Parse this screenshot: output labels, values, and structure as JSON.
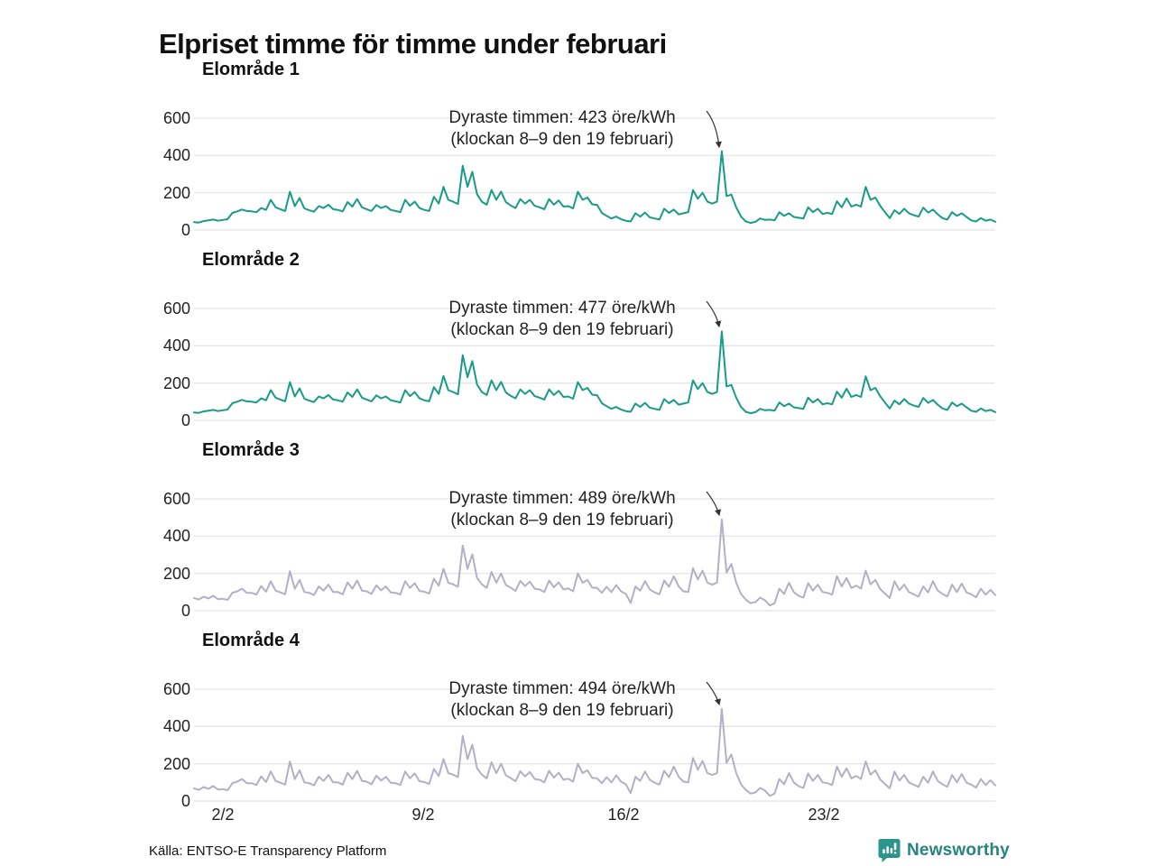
{
  "page": {
    "title": "Elpriset timme för timme under februari",
    "source": "Källa: ENTSO-E Transparency Platform",
    "logo_text": "Newsworthy"
  },
  "colors": {
    "teal": "#199c86",
    "lavender": "#b3b0c6",
    "grid": "#dedede",
    "arrow": "#333333",
    "logo_icon": "#2b958b",
    "logo_text": "#26847c"
  },
  "y_axis": {
    "ticks": [
      0,
      200,
      400,
      600
    ],
    "max": 600
  },
  "x_axis": {
    "ticks": [
      "2/2",
      "9/2",
      "16/2",
      "23/2"
    ],
    "days_in_month": 28
  },
  "chart_data": [
    {
      "type": "line",
      "title": "Elområde 1",
      "unit": "öre/kWh",
      "color": "#199c86",
      "ylim": [
        0,
        600
      ],
      "x_start": "1/2",
      "x_end": "28/2",
      "samples_per_day": 6,
      "annotation": {
        "line1": "Dyraste timmen: 423 öre/kWh",
        "line2": "(klockan 8–9 den 19 februari)",
        "value": 423,
        "peak_day": 19,
        "peak_hour": 8
      },
      "values": [
        42,
        40,
        48,
        52,
        56,
        50,
        54,
        58,
        92,
        100,
        110,
        102,
        100,
        96,
        118,
        108,
        162,
        122,
        112,
        102,
        205,
        128,
        172,
        116,
        106,
        98,
        128,
        118,
        136,
        112,
        108,
        100,
        150,
        126,
        166,
        122,
        112,
        102,
        134,
        118,
        128,
        108,
        102,
        96,
        162,
        130,
        152,
        118,
        108,
        102,
        178,
        142,
        232,
        162,
        152,
        140,
        345,
        232,
        312,
        192,
        152,
        136,
        215,
        162,
        206,
        150,
        132,
        118,
        166,
        142,
        162,
        130,
        122,
        112,
        166,
        136,
        158,
        126,
        128,
        116,
        205,
        162,
        174,
        138,
        135,
        92,
        76,
        62,
        72,
        58,
        50,
        46,
        90,
        72,
        94,
        68,
        62,
        56,
        114,
        92,
        110,
        84,
        90,
        96,
        215,
        168,
        200,
        152,
        142,
        152,
        423,
        182,
        190,
        122,
        72,
        46,
        38,
        44,
        62,
        54,
        56,
        52,
        96,
        76,
        90,
        70,
        66,
        62,
        122,
        96,
        114,
        86,
        92,
        86,
        154,
        122,
        170,
        126,
        136,
        126,
        232,
        162,
        174,
        130,
        96,
        64,
        106,
        86,
        114,
        90,
        80,
        72,
        120,
        94,
        110,
        84,
        64,
        56,
        96,
        76,
        90,
        70,
        52,
        46,
        64,
        50,
        56,
        44
      ]
    },
    {
      "type": "line",
      "title": "Elområde 2",
      "unit": "öre/kWh",
      "color": "#199c86",
      "ylim": [
        0,
        600
      ],
      "x_start": "1/2",
      "x_end": "28/2",
      "samples_per_day": 6,
      "annotation": {
        "line1": "Dyraste timmen: 477 öre/kWh",
        "line2": "(klockan 8–9 den 19 februari)",
        "value": 477,
        "peak_day": 19,
        "peak_hour": 8
      },
      "values": [
        42,
        40,
        48,
        52,
        56,
        50,
        54,
        58,
        92,
        100,
        110,
        102,
        100,
        96,
        118,
        108,
        162,
        122,
        112,
        102,
        205,
        128,
        172,
        116,
        106,
        98,
        128,
        118,
        136,
        112,
        108,
        100,
        150,
        126,
        166,
        122,
        112,
        102,
        134,
        118,
        128,
        108,
        102,
        96,
        162,
        130,
        152,
        118,
        108,
        102,
        178,
        142,
        238,
        162,
        152,
        140,
        350,
        232,
        318,
        192,
        152,
        136,
        215,
        162,
        206,
        150,
        132,
        118,
        166,
        142,
        162,
        130,
        122,
        112,
        166,
        136,
        158,
        126,
        128,
        116,
        205,
        162,
        174,
        138,
        135,
        92,
        76,
        62,
        72,
        58,
        50,
        46,
        90,
        72,
        94,
        68,
        62,
        56,
        114,
        92,
        110,
        84,
        90,
        96,
        215,
        168,
        200,
        152,
        142,
        152,
        477,
        182,
        190,
        122,
        72,
        46,
        38,
        44,
        62,
        54,
        56,
        52,
        96,
        76,
        90,
        70,
        66,
        62,
        122,
        96,
        114,
        86,
        92,
        86,
        154,
        122,
        170,
        126,
        136,
        126,
        236,
        162,
        174,
        130,
        96,
        64,
        106,
        86,
        114,
        90,
        80,
        72,
        120,
        94,
        110,
        84,
        64,
        56,
        96,
        76,
        90,
        70,
        52,
        46,
        64,
        50,
        56,
        44
      ]
    },
    {
      "type": "line",
      "title": "Elområde 3",
      "unit": "öre/kWh",
      "color": "#b3b0c6",
      "ylim": [
        0,
        600
      ],
      "x_start": "1/2",
      "x_end": "28/2",
      "samples_per_day": 6,
      "annotation": {
        "line1": "Dyraste timmen: 489 öre/kWh",
        "line2": "(klockan 8–9 den 19 februari)",
        "value": 489,
        "peak_day": 19,
        "peak_hour": 8
      },
      "values": [
        68,
        60,
        75,
        66,
        80,
        62,
        64,
        58,
        96,
        104,
        118,
        96,
        96,
        86,
        132,
        102,
        158,
        108,
        98,
        88,
        212,
        118,
        165,
        100,
        96,
        84,
        130,
        108,
        140,
        100,
        100,
        88,
        152,
        118,
        162,
        108,
        104,
        90,
        136,
        110,
        130,
        98,
        96,
        86,
        158,
        122,
        148,
        106,
        102,
        92,
        172,
        134,
        225,
        150,
        142,
        128,
        350,
        225,
        302,
        176,
        142,
        122,
        208,
        150,
        200,
        138,
        124,
        106,
        160,
        132,
        156,
        118,
        114,
        100,
        162,
        126,
        152,
        114,
        120,
        104,
        200,
        150,
        165,
        124,
        122,
        96,
        128,
        100,
        138,
        104,
        90,
        42,
        130,
        108,
        158,
        114,
        98,
        88,
        162,
        128,
        185,
        130,
        104,
        100,
        228,
        168,
        215,
        150,
        140,
        150,
        489,
        205,
        250,
        150,
        90,
        60,
        40,
        46,
        70,
        56,
        28,
        40,
        118,
        90,
        150,
        100,
        80,
        70,
        148,
        108,
        140,
        100,
        96,
        86,
        185,
        130,
        175,
        122,
        135,
        118,
        215,
        142,
        165,
        116,
        92,
        68,
        158,
        110,
        140,
        100,
        88,
        76,
        130,
        98,
        158,
        108,
        90,
        76,
        140,
        100,
        145,
        98,
        88,
        72,
        118,
        86,
        112,
        84
      ]
    },
    {
      "type": "line",
      "title": "Elområde 4",
      "unit": "öre/kWh",
      "color": "#b3b0c6",
      "ylim": [
        0,
        600
      ],
      "x_start": "1/2",
      "x_end": "28/2",
      "samples_per_day": 6,
      "annotation": {
        "line1": "Dyraste timmen: 494 öre/kWh",
        "line2": "(klockan 8–9 den 19 februari)",
        "value": 494,
        "peak_day": 19,
        "peak_hour": 8
      },
      "values": [
        68,
        60,
        75,
        66,
        80,
        62,
        64,
        58,
        96,
        104,
        118,
        96,
        96,
        86,
        132,
        102,
        158,
        108,
        98,
        88,
        212,
        118,
        165,
        100,
        96,
        84,
        130,
        108,
        140,
        100,
        100,
        88,
        152,
        118,
        162,
        108,
        104,
        90,
        136,
        110,
        130,
        98,
        96,
        86,
        158,
        122,
        148,
        106,
        102,
        92,
        172,
        134,
        225,
        150,
        142,
        128,
        350,
        225,
        302,
        176,
        142,
        122,
        208,
        150,
        200,
        138,
        124,
        106,
        160,
        132,
        156,
        118,
        114,
        100,
        162,
        126,
        152,
        114,
        120,
        104,
        200,
        150,
        165,
        124,
        122,
        96,
        128,
        100,
        138,
        104,
        90,
        42,
        130,
        108,
        158,
        114,
        98,
        88,
        162,
        128,
        185,
        130,
        104,
        100,
        232,
        168,
        215,
        150,
        140,
        150,
        494,
        205,
        250,
        150,
        90,
        60,
        40,
        46,
        70,
        56,
        28,
        40,
        118,
        90,
        150,
        100,
        80,
        70,
        148,
        108,
        140,
        100,
        96,
        86,
        185,
        130,
        175,
        122,
        135,
        118,
        212,
        142,
        165,
        116,
        92,
        68,
        158,
        110,
        140,
        100,
        88,
        76,
        130,
        98,
        158,
        108,
        90,
        76,
        140,
        100,
        145,
        98,
        88,
        72,
        118,
        86,
        112,
        84
      ]
    }
  ]
}
